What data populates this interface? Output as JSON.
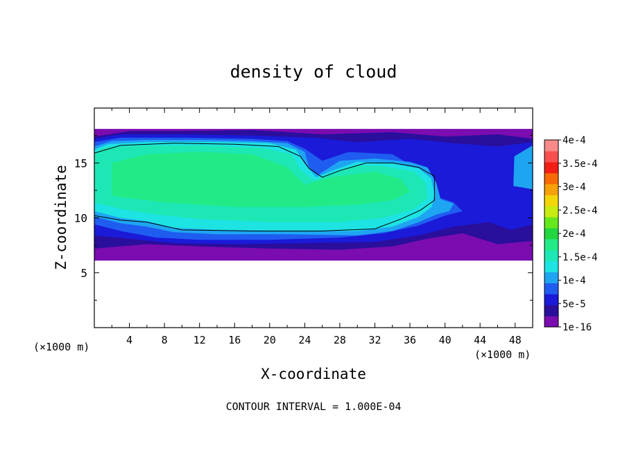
{
  "chart_data": {
    "type": "heatmap",
    "title": "density of cloud",
    "xlabel": "X-coordinate",
    "ylabel": "Z-coordinate",
    "x_unit_left": "(×1000 m)",
    "x_unit_right": "(×1000 m)",
    "footer": "CONTOUR INTERVAL = 1.000E-04",
    "xlim": [
      0,
      50
    ],
    "ylim": [
      0,
      20
    ],
    "x_ticks": [
      4,
      8,
      12,
      16,
      20,
      24,
      28,
      32,
      36,
      40,
      44,
      48
    ],
    "x_tick_labels": [
      "4",
      "8",
      "12",
      "16",
      "20",
      "24",
      "28",
      "32",
      "36",
      "40",
      "44",
      "48"
    ],
    "y_ticks": [
      5,
      10,
      15
    ],
    "y_tick_labels": [
      "5",
      "10",
      "15"
    ],
    "colorbar": {
      "levels": [
        1e-16,
        2.5e-05,
        5e-05,
        7.5e-05,
        0.0001,
        0.000125,
        0.00015,
        0.000175,
        0.0002,
        0.000225,
        0.00025,
        0.000275,
        0.0003,
        0.000325,
        0.00035,
        0.000375,
        0.0004
      ],
      "colors": [
        "#7a0cb0",
        "#2a0e9c",
        "#1a1ad8",
        "#1f5cf0",
        "#1ea5f2",
        "#1de3e3",
        "#1ee7b6",
        "#22ea86",
        "#22d63f",
        "#66e81c",
        "#c8ec12",
        "#f2d60a",
        "#f7a007",
        "#f86a08",
        "#f21d14",
        "#f9504f",
        "#fa8a8a"
      ],
      "label_values": [
        1e-16,
        5e-05,
        0.0001,
        0.00015,
        0.0002,
        0.00025,
        0.0003,
        0.00035,
        0.0004
      ],
      "labels": [
        "1e-16",
        "5e-5",
        "1e-4",
        "1.5e-4",
        "2e-4",
        "2.5e-4",
        "3e-4",
        "3.5e-4",
        "4e-4"
      ]
    },
    "contour_levels": [
      0.0001
    ],
    "field_regions": [
      {
        "level_index": 0,
        "polygon_xz": [
          [
            0,
            6.1
          ],
          [
            50,
            6.1
          ],
          [
            50,
            18.1
          ],
          [
            0,
            18.1
          ]
        ]
      },
      {
        "level_index": 1,
        "polygon_xz": [
          [
            0,
            7.2
          ],
          [
            6,
            7.6
          ],
          [
            12,
            7.4
          ],
          [
            20,
            7.2
          ],
          [
            28,
            7.1
          ],
          [
            34,
            7.4
          ],
          [
            38,
            8.1
          ],
          [
            42,
            8.6
          ],
          [
            46,
            7.6
          ],
          [
            50,
            7.9
          ],
          [
            50,
            17.2
          ],
          [
            46,
            17.6
          ],
          [
            40,
            17.4
          ],
          [
            34,
            17.8
          ],
          [
            26,
            17.6
          ],
          [
            18,
            18.0
          ],
          [
            10,
            17.9
          ],
          [
            4,
            17.9
          ],
          [
            0,
            17.4
          ],
          [
            0,
            10.4
          ]
        ]
      },
      {
        "level_index": 2,
        "polygon_xz": [
          [
            0,
            8.4
          ],
          [
            4,
            8.1
          ],
          [
            9,
            7.7
          ],
          [
            16,
            7.6
          ],
          [
            24,
            7.7
          ],
          [
            32,
            7.8
          ],
          [
            37,
            8.4
          ],
          [
            41,
            9.2
          ],
          [
            45,
            9.6
          ],
          [
            47.5,
            8.9
          ],
          [
            50,
            9.4
          ],
          [
            50,
            16.9
          ],
          [
            46,
            16.5
          ],
          [
            41,
            16.8
          ],
          [
            36,
            17.2
          ],
          [
            30,
            16.9
          ],
          [
            25,
            17.3
          ],
          [
            18,
            17.5
          ],
          [
            10,
            17.6
          ],
          [
            3,
            17.6
          ],
          [
            0,
            17.2
          ]
        ]
      },
      {
        "level_index": 3,
        "polygon_xz": [
          [
            0,
            9.4
          ],
          [
            3,
            8.8
          ],
          [
            7,
            8.2
          ],
          [
            12,
            8.0
          ],
          [
            20,
            8.0
          ],
          [
            28,
            8.2
          ],
          [
            33,
            8.6
          ],
          [
            37,
            9.3
          ],
          [
            40,
            10.2
          ],
          [
            42,
            10.6
          ],
          [
            41,
            11.4
          ],
          [
            38,
            12.2
          ],
          [
            37,
            14.4
          ],
          [
            34,
            15.8
          ],
          [
            29,
            16.0
          ],
          [
            26,
            15.2
          ],
          [
            24,
            16.3
          ],
          [
            22,
            17.0
          ],
          [
            18,
            17.2
          ],
          [
            10,
            17.3
          ],
          [
            3,
            17.3
          ],
          [
            0,
            16.9
          ]
        ]
      },
      {
        "level_index": 4,
        "polygon_xz": [
          [
            0,
            10.1
          ],
          [
            3,
            9.5
          ],
          [
            6,
            9.2
          ],
          [
            9,
            8.7
          ],
          [
            14,
            8.5
          ],
          [
            22,
            8.5
          ],
          [
            30,
            8.4
          ],
          [
            34,
            8.8
          ],
          [
            37,
            9.6
          ],
          [
            39,
            10.3
          ],
          [
            40.5,
            10.6
          ],
          [
            41,
            11.3
          ],
          [
            39.5,
            11.7
          ],
          [
            39,
            13.2
          ],
          [
            38,
            14.6
          ],
          [
            36,
            15.1
          ],
          [
            32,
            15.4
          ],
          [
            28,
            15.2
          ],
          [
            25.5,
            13.9
          ],
          [
            24.5,
            14.6
          ],
          [
            24,
            16.0
          ],
          [
            22,
            16.8
          ],
          [
            18,
            17.0
          ],
          [
            12,
            17.1
          ],
          [
            6,
            17.1
          ],
          [
            2,
            17.0
          ],
          [
            0,
            16.5
          ]
        ]
      },
      {
        "level_index": 5,
        "polygon_xz": [
          [
            0,
            10.6
          ],
          [
            3,
            10.0
          ],
          [
            6,
            9.7
          ],
          [
            9,
            9.1
          ],
          [
            14,
            8.9
          ],
          [
            22,
            8.8
          ],
          [
            30,
            8.8
          ],
          [
            34,
            9.2
          ],
          [
            37,
            10.1
          ],
          [
            38.5,
            11.0
          ],
          [
            38.8,
            12.2
          ],
          [
            38.4,
            13.6
          ],
          [
            37,
            14.5
          ],
          [
            34,
            15.0
          ],
          [
            30,
            15.1
          ],
          [
            27.5,
            14.4
          ],
          [
            25.3,
            13.7
          ],
          [
            24,
            14.9
          ],
          [
            23,
            16.2
          ],
          [
            20,
            16.8
          ],
          [
            14,
            16.9
          ],
          [
            6,
            16.9
          ],
          [
            1.5,
            16.7
          ],
          [
            0,
            16.2
          ]
        ]
      },
      {
        "level_index": 6,
        "polygon_xz": [
          [
            0,
            11.4
          ],
          [
            3,
            10.8
          ],
          [
            7,
            10.3
          ],
          [
            12,
            9.9
          ],
          [
            20,
            9.6
          ],
          [
            28,
            9.6
          ],
          [
            33,
            10.0
          ],
          [
            36.5,
            10.8
          ],
          [
            38,
            11.8
          ],
          [
            37.8,
            13.2
          ],
          [
            36.5,
            14.2
          ],
          [
            33,
            14.7
          ],
          [
            30,
            14.8
          ],
          [
            27,
            14.0
          ],
          [
            25,
            13.4
          ],
          [
            23.5,
            14.4
          ],
          [
            22.5,
            15.8
          ],
          [
            19,
            16.4
          ],
          [
            12,
            16.6
          ],
          [
            5,
            16.6
          ],
          [
            1,
            16.4
          ],
          [
            0,
            15.9
          ]
        ]
      },
      {
        "level_index": 7,
        "polygon_xz": [
          [
            2,
            12.0
          ],
          [
            8,
            11.4
          ],
          [
            16,
            11.0
          ],
          [
            24,
            11.0
          ],
          [
            30,
            11.2
          ],
          [
            34,
            11.6
          ],
          [
            36,
            12.4
          ],
          [
            35,
            13.5
          ],
          [
            32,
            14.2
          ],
          [
            27,
            13.7
          ],
          [
            24,
            13.0
          ],
          [
            22,
            14.6
          ],
          [
            18,
            15.8
          ],
          [
            12,
            16.0
          ],
          [
            6,
            15.8
          ],
          [
            2,
            15.0
          ]
        ]
      },
      {
        "level_index": 5,
        "polygon_xz": [
          [
            50,
            13.0
          ],
          [
            48.2,
            13.4
          ],
          [
            48.4,
            15.2
          ],
          [
            50,
            16.0
          ]
        ]
      },
      {
        "level_index": 4,
        "polygon_xz": [
          [
            50,
            12.6
          ],
          [
            47.8,
            12.9
          ],
          [
            47.9,
            15.6
          ],
          [
            50,
            16.6
          ]
        ]
      }
    ],
    "contour_lines": [
      [
        [
          0,
          15.9
        ],
        [
          3,
          16.6
        ],
        [
          9,
          16.8
        ],
        [
          16,
          16.7
        ],
        [
          21,
          16.5
        ],
        [
          23.5,
          15.6
        ],
        [
          24.5,
          14.5
        ],
        [
          26,
          13.7
        ],
        [
          28,
          14.3
        ],
        [
          31,
          15.0
        ],
        [
          34,
          15.0
        ],
        [
          37,
          14.6
        ],
        [
          38.8,
          13.8
        ],
        [
          38.8,
          11.6
        ],
        [
          37.2,
          10.7
        ],
        [
          35,
          9.9
        ],
        [
          32,
          9.0
        ],
        [
          26,
          8.8
        ],
        [
          18,
          8.8
        ],
        [
          10,
          8.9
        ],
        [
          6,
          9.6
        ],
        [
          3,
          9.8
        ],
        [
          0,
          10.2
        ]
      ]
    ]
  }
}
